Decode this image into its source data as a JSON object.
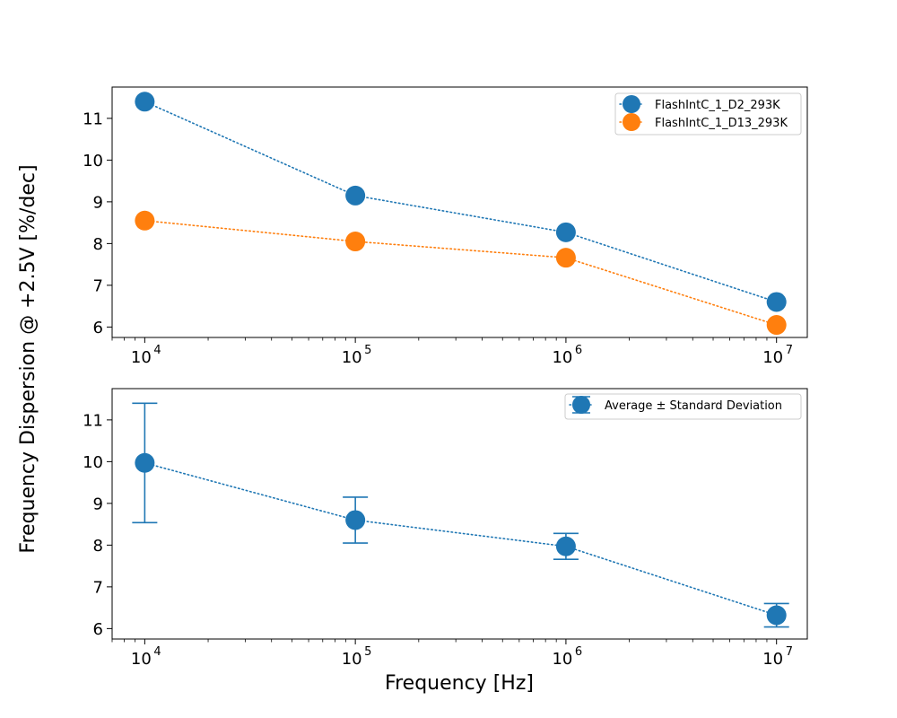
{
  "figure": {
    "ylabel": "Frequency Dispersion @ +2.5V [%/dec]",
    "xlabel": "Frequency [Hz]"
  },
  "chart_data": [
    {
      "type": "line",
      "xscale": "log",
      "xlim": [
        7000,
        14000000
      ],
      "ylim": [
        5.75,
        11.75
      ],
      "x_ticks": [
        10000,
        100000,
        1000000,
        10000000
      ],
      "x_tick_labels": [
        {
          "base": "10",
          "exp": "4"
        },
        {
          "base": "10",
          "exp": "5"
        },
        {
          "base": "10",
          "exp": "6"
        },
        {
          "base": "10",
          "exp": "7"
        }
      ],
      "y_ticks": [
        6,
        7,
        8,
        9,
        10,
        11
      ],
      "grid": false,
      "legend_position": "top-right",
      "x": [
        10000,
        100000,
        1000000,
        10000000
      ],
      "series": [
        {
          "name": "FlashIntC_1_D2_293K",
          "color": "#1f77b4",
          "values": [
            11.4,
            9.15,
            8.27,
            6.6
          ]
        },
        {
          "name": "FlashIntC_1_D13_293K",
          "color": "#ff7f0e",
          "values": [
            8.55,
            8.05,
            7.66,
            6.05
          ]
        }
      ]
    },
    {
      "type": "line",
      "xscale": "log",
      "xlim": [
        7000,
        14000000
      ],
      "ylim": [
        5.75,
        11.75
      ],
      "x_ticks": [
        10000,
        100000,
        1000000,
        10000000
      ],
      "x_tick_labels": [
        {
          "base": "10",
          "exp": "4"
        },
        {
          "base": "10",
          "exp": "5"
        },
        {
          "base": "10",
          "exp": "6"
        },
        {
          "base": "10",
          "exp": "7"
        }
      ],
      "y_ticks": [
        6,
        7,
        8,
        9,
        10,
        11
      ],
      "grid": false,
      "legend_position": "top-right",
      "x": [
        10000,
        100000,
        1000000,
        10000000
      ],
      "series": [
        {
          "name": "Average ± Standard Deviation",
          "color": "#1f77b4",
          "values": [
            9.97,
            8.6,
            7.97,
            6.32
          ],
          "error": [
            1.43,
            0.55,
            0.31,
            0.28
          ]
        }
      ]
    }
  ]
}
